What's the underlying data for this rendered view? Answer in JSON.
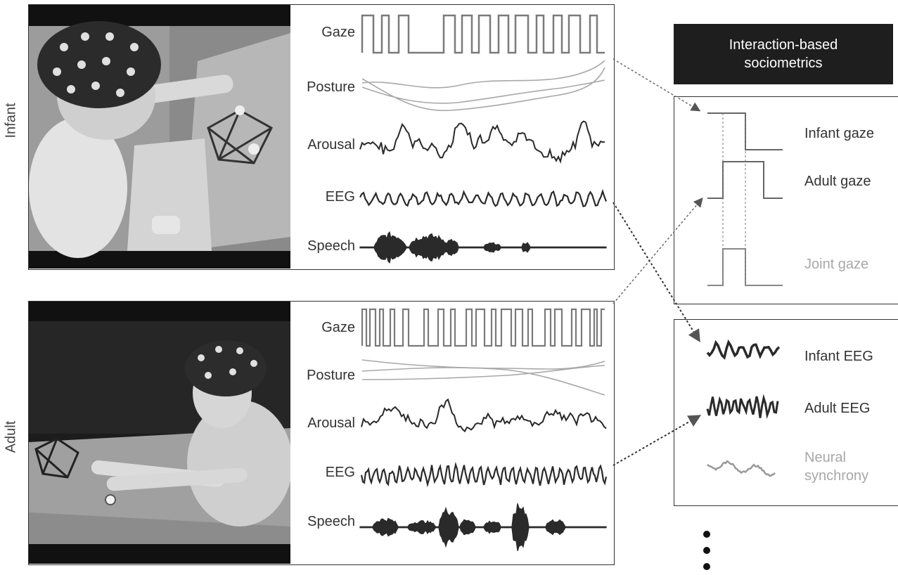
{
  "side_labels": {
    "infant": "Infant",
    "adult": "Adult"
  },
  "signal_labels": [
    "Gaze",
    "Posture",
    "Arousal",
    "EEG",
    "Speech"
  ],
  "header": {
    "line1": "Interaction-based",
    "line2": "sociometrics"
  },
  "gaze_metrics": {
    "infant_gaze": "Infant gaze",
    "adult_gaze": "Adult gaze",
    "joint_gaze": "Joint gaze"
  },
  "eeg_metrics": {
    "infant_eeg": "Infant EEG",
    "adult_eeg": "Adult EEG",
    "neural_line1": "Neural",
    "neural_line2": "synchrony"
  },
  "colors": {
    "dark_trace": "#2a2a2a",
    "mid_trace": "#7a7a7a",
    "light_trace": "#b0b0b0",
    "header_bg": "#1e1e1e"
  }
}
